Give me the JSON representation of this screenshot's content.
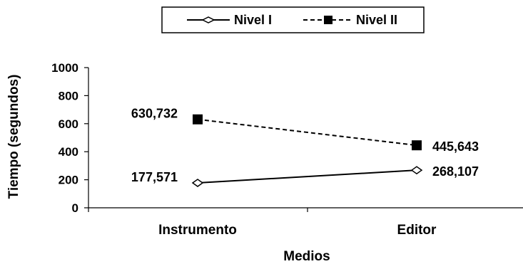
{
  "chart_data": {
    "type": "line",
    "categories": [
      "Instrumento",
      "Editor"
    ],
    "series": [
      {
        "name": "Nivel I",
        "values": [
          177.571,
          268.107
        ],
        "labels": [
          "177,571",
          "268,107"
        ],
        "line_style": "solid",
        "marker": "open-diamond",
        "color": "#000000"
      },
      {
        "name": "Nivel II",
        "values": [
          630.732,
          445.643
        ],
        "labels": [
          "630,732",
          "445,643"
        ],
        "line_style": "dashed",
        "marker": "filled-square",
        "color": "#000000"
      }
    ],
    "xlabel": "Medios",
    "ylabel": "Tiempo (segundos)",
    "ylim": [
      0,
      1000
    ],
    "yticks": [
      0,
      200,
      400,
      600,
      800,
      1000
    ],
    "grid": false,
    "legend_position": "top-center"
  }
}
